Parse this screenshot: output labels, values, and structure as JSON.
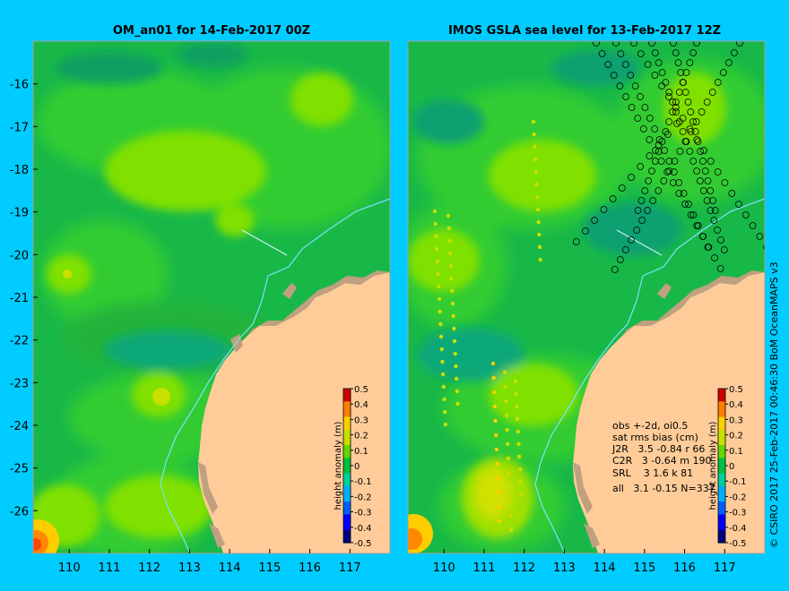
{
  "copyright": "© CSIRO 2017   25-Feb-2017 00:46:30 BoM OceanMAPS v3",
  "colors": {
    "background": "#00ccff",
    "land": "#ffcc99",
    "coast_shade": "#c0a080",
    "current_line": "#80e0ff",
    "observation_ring": "#000000"
  },
  "chart_data": [
    {
      "type": "heatmap",
      "title": "OM_an01 for 14-Feb-2017 00Z",
      "xlabel": "",
      "ylabel": "",
      "xlim": [
        109.1,
        118.0
      ],
      "ylim": [
        -27.0,
        -15.0
      ],
      "x_ticks": [
        110,
        111,
        112,
        113,
        114,
        115,
        116,
        117
      ],
      "y_ticks": [
        -16,
        -17,
        -18,
        -19,
        -20,
        -21,
        -22,
        -23,
        -24,
        -25,
        -26
      ],
      "colorbar": {
        "label": "height anomaly (m)",
        "range": [
          -0.5,
          0.5
        ],
        "ticks": [
          "0.5",
          "0.4",
          "0.3",
          "0.2",
          "0.1",
          "0",
          "-0.1",
          "-0.2",
          "-0.3",
          "-0.4",
          "-0.5"
        ]
      },
      "features": [
        {
          "name": "high",
          "lon": 112.4,
          "lat": -17.7,
          "value": 0.08
        },
        {
          "name": "high",
          "lon": 115.8,
          "lat": -16.3,
          "value": 0.08
        },
        {
          "name": "high",
          "lon": 114.2,
          "lat": -19.2,
          "value": 0.08
        },
        {
          "name": "high",
          "lon": 110.0,
          "lat": -20.3,
          "value": 0.12
        },
        {
          "name": "high",
          "lon": 112.2,
          "lat": -23.4,
          "value": 0.12
        },
        {
          "name": "high",
          "lon": 111.0,
          "lat": -25.2,
          "value": 0.08
        },
        {
          "name": "high",
          "lon": 109.2,
          "lat": -26.7,
          "value": 0.35
        },
        {
          "name": "low",
          "lon": 111.5,
          "lat": -21.8,
          "value": -0.06
        },
        {
          "name": "low",
          "lon": 113.5,
          "lat": -25.0,
          "value": -0.06
        }
      ]
    },
    {
      "type": "heatmap",
      "title": "IMOS GSLA sea level  for 13-Feb-2017 12Z",
      "xlabel": "",
      "ylabel": "",
      "xlim": [
        109.1,
        118.0
      ],
      "ylim": [
        -27.0,
        -15.0
      ],
      "x_ticks": [
        110,
        111,
        112,
        113,
        114,
        115,
        116,
        117
      ],
      "y_ticks": [],
      "colorbar": {
        "label": "height anomaly (m)",
        "range": [
          -0.5,
          0.5
        ],
        "ticks": [
          "0.5",
          "0.4",
          "0.3",
          "0.2",
          "0.1",
          "0",
          "-0.1",
          "-0.2",
          "-0.3",
          "-0.4",
          "-0.5"
        ]
      },
      "stats": {
        "header1": "obs +-2d, oi0.5",
        "header2": "sat rms bias (cm)",
        "rows": [
          "J2R   3.5 -0.84 r 66",
          "C2R   3 -0.64 m 190",
          "SRL    3 1.6 k 81",
          "all   3.1 -0.15 N=337"
        ]
      },
      "features": [
        {
          "name": "high",
          "lon": 112.6,
          "lat": -17.4,
          "value": 0.1
        },
        {
          "name": "high",
          "lon": 116.5,
          "lat": -16.4,
          "value": 0.12
        },
        {
          "name": "high",
          "lon": 110.5,
          "lat": -20.2,
          "value": 0.12
        },
        {
          "name": "high",
          "lon": 112.5,
          "lat": -23.5,
          "value": 0.1
        },
        {
          "name": "high",
          "lon": 111.3,
          "lat": -25.2,
          "value": 0.2
        },
        {
          "name": "high",
          "lon": 109.2,
          "lat": -26.7,
          "value": 0.3
        },
        {
          "name": "low",
          "lon": 110.8,
          "lat": -22.0,
          "value": -0.08
        },
        {
          "name": "low",
          "lon": 115.3,
          "lat": -19.0,
          "value": -0.05
        }
      ]
    }
  ]
}
